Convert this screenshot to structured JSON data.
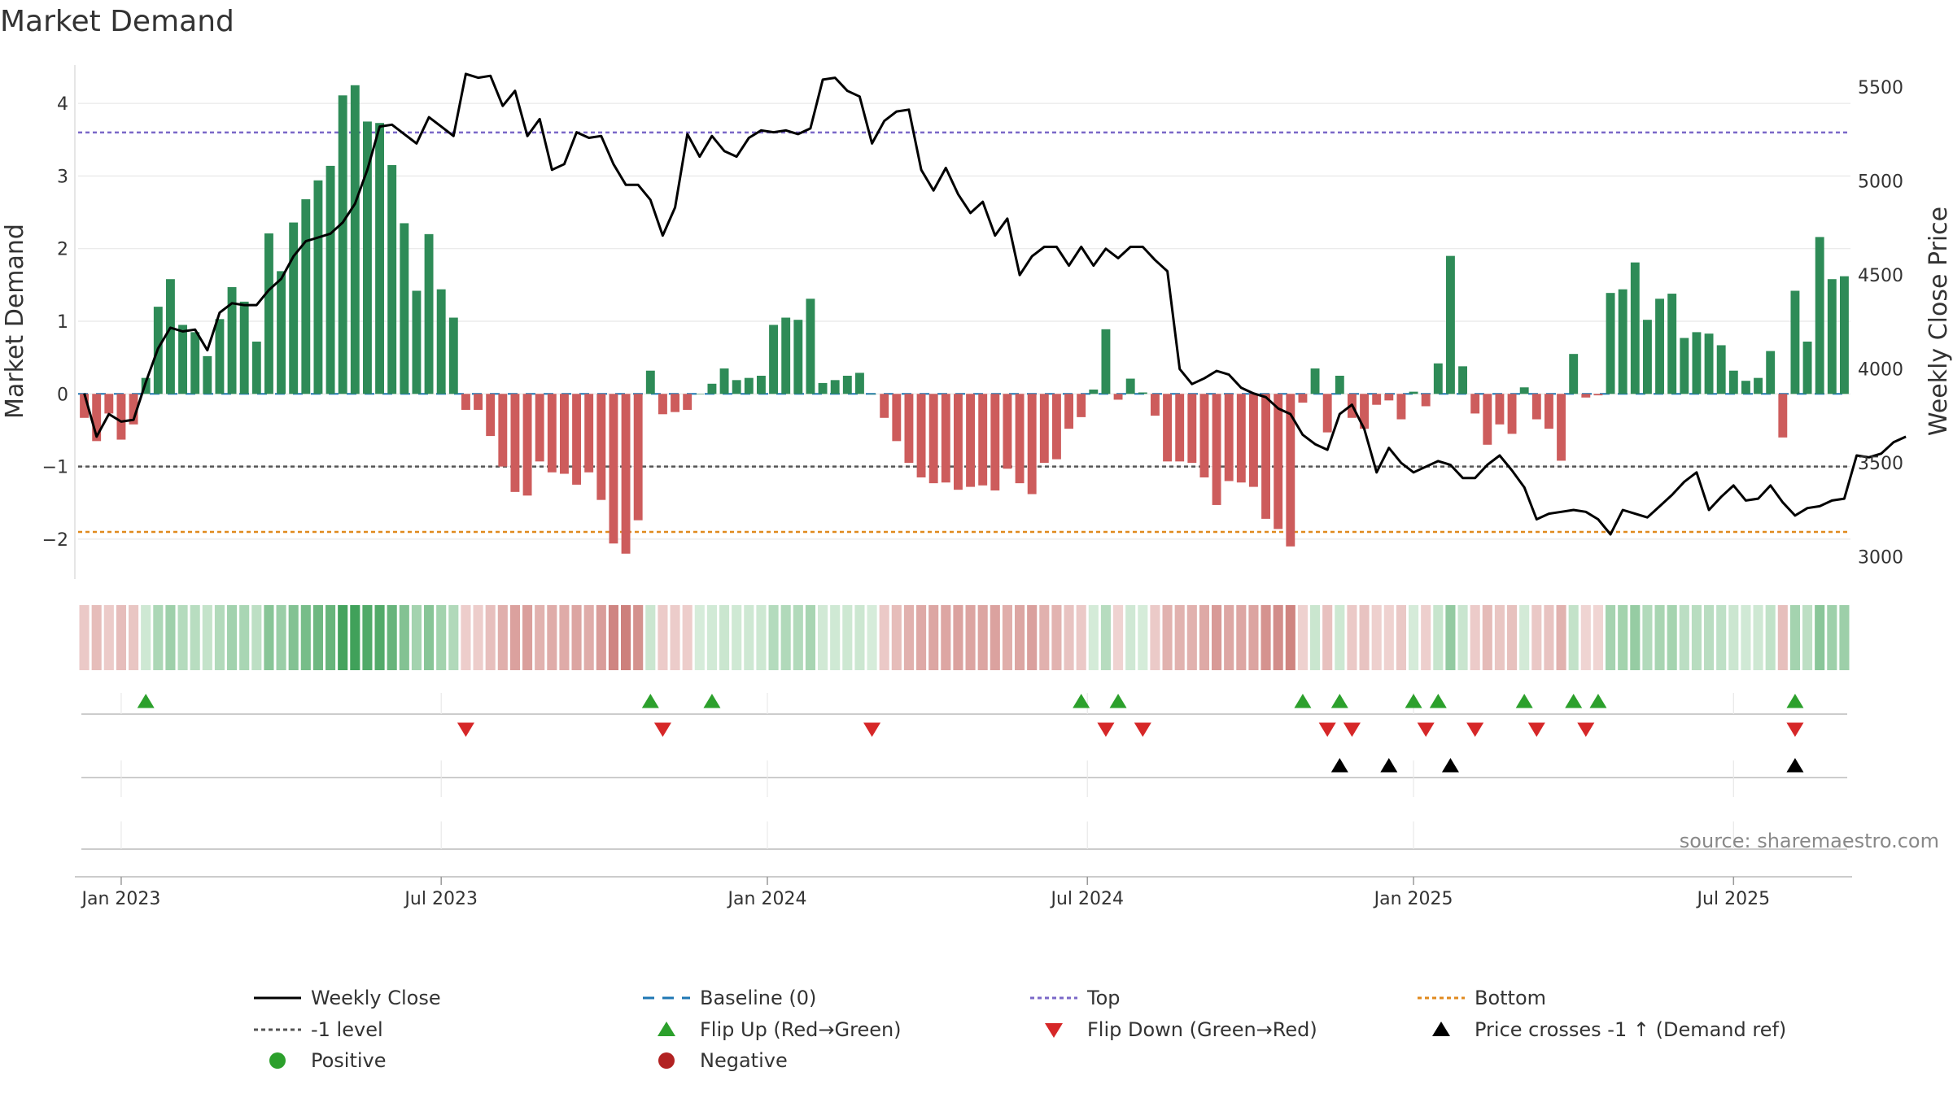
{
  "chart_data": {
    "type": "bar",
    "title": "Market Demand",
    "ylabel_left": "Market Demand",
    "ylabel_right": "Weekly Close Price",
    "source": "source: sharemaestro.com",
    "x_ticks": [
      "Jan 2023",
      "Jul 2023",
      "Jan 2024",
      "Jul 2024",
      "Jan 2025",
      "Jul 2025"
    ],
    "x_tick_week_index": [
      3,
      29,
      55.5,
      81.5,
      108,
      134
    ],
    "y_left_ticks": [
      4,
      3,
      2,
      1,
      0,
      -1,
      -2
    ],
    "y_left_tick_labels": [
      "4",
      "3",
      "2",
      "1",
      "0",
      "−1",
      "−2"
    ],
    "ylim_left": [
      -2.55,
      4.55
    ],
    "y_right_ticks": [
      5500,
      5000,
      4500,
      4000,
      3500,
      3000
    ],
    "y_right_tick_labels": [
      "5500",
      "5000",
      "4500",
      "4000",
      "3500",
      "3000"
    ],
    "ylim_right": [
      2882,
      5626
    ],
    "reference_lines": {
      "top": 3.6,
      "minus_one": -1.0,
      "bottom": -1.9,
      "baseline": 0
    },
    "series": [
      {
        "name": "Market Demand",
        "values": [
          -0.33,
          -0.65,
          -0.27,
          -0.63,
          -0.42,
          0.22,
          1.2,
          1.58,
          0.95,
          0.85,
          0.52,
          1.03,
          1.47,
          1.27,
          0.72,
          2.21,
          1.69,
          2.36,
          2.68,
          2.94,
          3.14,
          4.11,
          4.25,
          3.75,
          3.73,
          3.15,
          2.35,
          1.42,
          2.2,
          1.44,
          1.05,
          -0.22,
          -0.22,
          -0.58,
          -1.0,
          -1.35,
          -1.4,
          -0.93,
          -1.08,
          -1.1,
          -1.25,
          -1.08,
          -1.46,
          -2.06,
          -2.2,
          -1.74,
          0.32,
          -0.28,
          -0.25,
          -0.22,
          0.0,
          0.14,
          0.35,
          0.19,
          0.22,
          0.25,
          0.95,
          1.05,
          1.02,
          1.31,
          0.15,
          0.19,
          0.25,
          0.29,
          0.0,
          -0.33,
          -0.65,
          -0.95,
          -1.15,
          -1.23,
          -1.22,
          -1.32,
          -1.28,
          -1.26,
          -1.33,
          -1.03,
          -1.23,
          -1.38,
          -0.95,
          -0.9,
          -0.48,
          -0.32,
          0.06,
          0.89,
          -0.08,
          0.21,
          0.02,
          -0.3,
          -0.93,
          -0.93,
          -0.95,
          -1.15,
          -1.53,
          -1.2,
          -1.22,
          -1.28,
          -1.72,
          -1.86,
          -2.1,
          -0.12,
          0.35,
          -0.53,
          0.25,
          -0.33,
          -0.48,
          -0.15,
          -0.09,
          -0.35,
          0.03,
          -0.17,
          0.42,
          1.9,
          0.38,
          -0.27,
          -0.7,
          -0.42,
          -0.55,
          0.09,
          -0.35,
          -0.48,
          -0.92,
          0.55,
          -0.05,
          -0.02,
          1.39,
          1.44,
          1.81,
          1.02,
          1.31,
          1.38,
          0.77,
          0.85,
          0.83,
          0.67,
          0.32,
          0.18,
          0.22,
          0.59,
          -0.6,
          1.42,
          0.72,
          2.16,
          1.58,
          1.62
        ]
      },
      {
        "name": "Weekly Close",
        "values": [
          3870,
          3640,
          3760,
          3720,
          3730,
          3930,
          4110,
          4220,
          4200,
          4210,
          4100,
          4300,
          4350,
          4340,
          4340,
          4420,
          4480,
          4600,
          4680,
          4700,
          4720,
          4780,
          4880,
          5060,
          5290,
          5300,
          5250,
          5200,
          5340,
          5290,
          5240,
          5570,
          5550,
          5560,
          5400,
          5480,
          5240,
          5330,
          5060,
          5090,
          5260,
          5230,
          5240,
          5090,
          4980,
          4980,
          4900,
          4710,
          4860,
          5250,
          5130,
          5240,
          5160,
          5130,
          5230,
          5270,
          5260,
          5270,
          5250,
          5280,
          5540,
          5550,
          5480,
          5450,
          5200,
          5320,
          5370,
          5380,
          5060,
          4950,
          5070,
          4930,
          4830,
          4890,
          4710,
          4800,
          4500,
          4600,
          4650,
          4650,
          4550,
          4650,
          4550,
          4640,
          4590,
          4650,
          4650,
          4580,
          4520,
          4000,
          3920,
          3950,
          3990,
          3970,
          3900,
          3870,
          3850,
          3790,
          3760,
          3650,
          3600,
          3570,
          3760,
          3810,
          3680,
          3450,
          3580,
          3500,
          3450,
          3480,
          3510,
          3490,
          3420,
          3420,
          3490,
          3540,
          3460,
          3370,
          3200,
          3230,
          3240,
          3250,
          3240,
          3200,
          3120,
          3250,
          3230,
          3210,
          3270,
          3330,
          3400,
          3450,
          3250,
          3320,
          3380,
          3300,
          3310,
          3380,
          3290,
          3220,
          3260,
          3270,
          3300,
          3310,
          3540,
          3530,
          3550,
          3610,
          3640
        ]
      }
    ],
    "markers": {
      "flip_up_weeks": [
        5,
        46,
        51,
        81,
        84,
        99,
        102,
        108,
        110,
        117,
        121,
        123,
        139
      ],
      "flip_down_weeks": [
        31,
        47,
        64,
        83,
        86,
        101,
        103,
        109,
        113,
        118,
        122,
        139
      ],
      "price_cross_weeks": [
        102,
        106,
        111,
        139
      ]
    },
    "legend": [
      {
        "label": "Weekly Close",
        "marker": "solid-line",
        "color": "#000000"
      },
      {
        "label": "Baseline (0)",
        "marker": "dashed-line",
        "color": "#1f77b4"
      },
      {
        "label": "Top",
        "marker": "dotted-line",
        "color": "#7b68c8"
      },
      {
        "label": "Bottom",
        "marker": "dotted-line",
        "color": "#e08a1e"
      },
      {
        "label": "-1 level",
        "marker": "dotted-line",
        "color": "#555555"
      },
      {
        "label": "Flip Up (Red→Green)",
        "marker": "triangle-up",
        "color": "#2ca02c"
      },
      {
        "label": "Flip Down (Green→Red)",
        "marker": "triangle-down",
        "color": "#d62728"
      },
      {
        "label": "Price crosses -1 ↑ (Demand ref)",
        "marker": "triangle-up",
        "color": "#000000"
      },
      {
        "label": "Positive",
        "marker": "circle",
        "color": "#2ca02c"
      },
      {
        "label": "Negative",
        "marker": "circle",
        "color": "#b22222"
      }
    ],
    "colors": {
      "positive_bar": "#2e8b57",
      "negative_bar": "#cd5c5c",
      "price_line": "#000000",
      "top_line": "#7b68c8",
      "bottom_line": "#e08a1e",
      "minus_one_line": "#555555",
      "baseline": "#1f77b4",
      "flip_up": "#2ca02c",
      "flip_down": "#d62728",
      "price_cross": "#000000",
      "grid": "#e8e8e8"
    }
  }
}
